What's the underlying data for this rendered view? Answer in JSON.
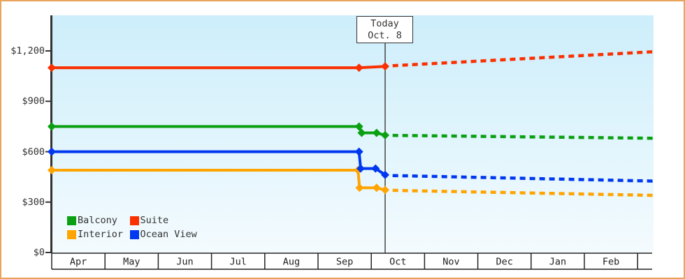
{
  "chart_data": {
    "type": "line",
    "title": "",
    "today_label": {
      "line1": "Today",
      "line2": "Oct. 8"
    },
    "today_month_fraction": 6.26,
    "x_axis": {
      "months": [
        "Apr",
        "May",
        "Jun",
        "Jul",
        "Aug",
        "Sep",
        "Oct",
        "Nov",
        "Dec",
        "Jan",
        "Feb"
      ]
    },
    "y_axis": {
      "ticks": [
        0,
        300,
        600,
        900,
        1200
      ],
      "tick_labels": [
        "$0",
        "$300",
        "$600",
        "$900",
        "$1,200"
      ],
      "ylim": [
        0,
        1410
      ],
      "unit": "$"
    },
    "legend": [
      {
        "label": "Balcony",
        "color": "#0ba012"
      },
      {
        "label": "Suite",
        "color": "#fa3000"
      },
      {
        "label": "Interior",
        "color": "#ffa400"
      },
      {
        "label": "Ocean View",
        "color": "#0038ef"
      }
    ],
    "series": [
      {
        "name": "Interior",
        "color": "#ffa400",
        "history": [
          {
            "m": 0,
            "price": 490
          },
          {
            "m": 5.75,
            "price": 490
          },
          {
            "m": 5.78,
            "price": 385
          },
          {
            "m": 6.1,
            "price": 385
          },
          {
            "m": 6.26,
            "price": 372
          }
        ],
        "markers": [
          {
            "m": 0,
            "price": 490
          },
          {
            "m": 5.75,
            "price": 490
          },
          {
            "m": 5.78,
            "price": 385
          },
          {
            "m": 6.1,
            "price": 385
          },
          {
            "m": 6.26,
            "price": 372
          }
        ],
        "forecast": [
          {
            "m": 6.4,
            "price": 370
          },
          {
            "m": 11.29,
            "price": 340
          }
        ]
      },
      {
        "name": "Ocean View",
        "color": "#0038ef",
        "history": [
          {
            "m": 0,
            "price": 600
          },
          {
            "m": 5.77,
            "price": 600
          },
          {
            "m": 5.8,
            "price": 500
          },
          {
            "m": 6.08,
            "price": 500
          },
          {
            "m": 6.26,
            "price": 462
          }
        ],
        "markers": [
          {
            "m": 0,
            "price": 600
          },
          {
            "m": 5.77,
            "price": 600
          },
          {
            "m": 5.8,
            "price": 500
          },
          {
            "m": 6.08,
            "price": 500
          },
          {
            "m": 6.26,
            "price": 462
          }
        ],
        "forecast": [
          {
            "m": 6.4,
            "price": 458
          },
          {
            "m": 11.29,
            "price": 425
          }
        ]
      },
      {
        "name": "Balcony",
        "color": "#0ba012",
        "history": [
          {
            "m": 0,
            "price": 750
          },
          {
            "m": 5.77,
            "price": 750
          },
          {
            "m": 5.82,
            "price": 712
          },
          {
            "m": 6.1,
            "price": 712
          },
          {
            "m": 6.26,
            "price": 698
          }
        ],
        "markers": [
          {
            "m": 0,
            "price": 750
          },
          {
            "m": 5.77,
            "price": 750
          },
          {
            "m": 5.82,
            "price": 712
          },
          {
            "m": 6.1,
            "price": 712
          },
          {
            "m": 6.26,
            "price": 698
          }
        ],
        "forecast": [
          {
            "m": 6.4,
            "price": 697
          },
          {
            "m": 11.29,
            "price": 680
          }
        ]
      },
      {
        "name": "Suite",
        "color": "#fa3000",
        "history": [
          {
            "m": 0,
            "price": 1100
          },
          {
            "m": 5.77,
            "price": 1100
          },
          {
            "m": 6.26,
            "price": 1108
          }
        ],
        "markers": [
          {
            "m": 0,
            "price": 1100
          },
          {
            "m": 5.77,
            "price": 1100
          },
          {
            "m": 6.26,
            "price": 1108
          }
        ],
        "forecast": [
          {
            "m": 6.4,
            "price": 1112
          },
          {
            "m": 11.29,
            "price": 1195
          }
        ]
      }
    ],
    "colors": {
      "frame_border": "#e9a45c",
      "axis": "#333333",
      "today_line": "#444444",
      "plot_gradient_top": "#cdeefb",
      "plot_gradient_bottom": "#f4fbfe",
      "month_cell_bg": "#ffffff",
      "month_cell_border": "#222222"
    }
  }
}
